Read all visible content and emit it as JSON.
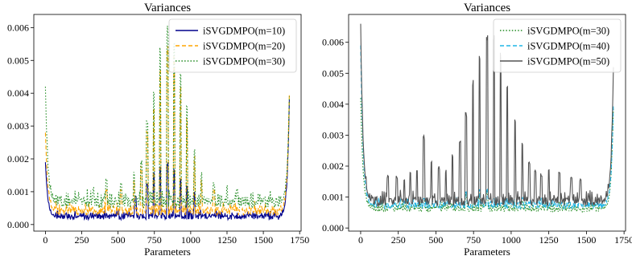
{
  "chart_data": [
    {
      "type": "line",
      "title": "Variances",
      "xlabel": "Parameters",
      "ylabel": "",
      "xlim": [
        -80,
        1760
      ],
      "ylim": [
        -0.0002,
        0.0064
      ],
      "x_ticks": [
        "0",
        "250",
        "500",
        "750",
        "1000",
        "1250",
        "1500",
        "1750"
      ],
      "y_ticks": [
        "0.000",
        "0.001",
        "0.002",
        "0.003",
        "0.004",
        "0.005",
        "0.006"
      ],
      "legend_position": "top-right",
      "n_params": 1680,
      "series": [
        {
          "name": "iSVGDMPO(m=10)",
          "color": "#00008b",
          "style": "solid",
          "base": 0.0002,
          "left_edge": 0.0019,
          "right_edge": 0.0038,
          "noise": 0.00017,
          "peaks": [
            [
              620,
              0.0009
            ],
            [
              700,
              0.0013
            ],
            [
              745,
              0.0016
            ],
            [
              790,
              0.0018
            ],
            [
              840,
              0.0019
            ],
            [
              885,
              0.0017
            ],
            [
              930,
              0.0014
            ],
            [
              975,
              0.0012
            ],
            [
              1025,
              0.001
            ]
          ]
        },
        {
          "name": "iSVGDMPO(m=20)",
          "color": "#ffa500",
          "style": "dashed",
          "base": 0.00035,
          "left_edge": 0.0028,
          "right_edge": 0.004,
          "noise": 0.00025,
          "peaks": [
            [
              420,
              0.0011
            ],
            [
              520,
              0.0011
            ],
            [
              610,
              0.0014
            ],
            [
              660,
              0.0018
            ],
            [
              700,
              0.0029
            ],
            [
              745,
              0.0037
            ],
            [
              790,
              0.0048
            ],
            [
              840,
              0.0055
            ],
            [
              885,
              0.0052
            ],
            [
              930,
              0.0043
            ],
            [
              975,
              0.0033
            ],
            [
              1025,
              0.0021
            ],
            [
              1075,
              0.0014
            ],
            [
              1160,
              0.0011
            ]
          ]
        },
        {
          "name": "iSVGDMPO(m=30)",
          "color": "#228b22",
          "style": "dotted",
          "base": 0.0006,
          "left_edge": 0.0042,
          "right_edge": 0.0039,
          "noise": 0.00032,
          "peaks": [
            [
              330,
              0.0012
            ],
            [
              420,
              0.0014
            ],
            [
              520,
              0.0013
            ],
            [
              610,
              0.0016
            ],
            [
              660,
              0.002
            ],
            [
              700,
              0.0032
            ],
            [
              745,
              0.0043
            ],
            [
              790,
              0.0055
            ],
            [
              840,
              0.0061
            ],
            [
              885,
              0.0058
            ],
            [
              930,
              0.0048
            ],
            [
              975,
              0.0036
            ],
            [
              1025,
              0.0023
            ],
            [
              1075,
              0.0016
            ],
            [
              1160,
              0.0013
            ],
            [
              1250,
              0.0012
            ],
            [
              1320,
              0.0011
            ]
          ]
        }
      ]
    },
    {
      "type": "line",
      "title": "Variances",
      "xlabel": "Parameters",
      "ylabel": "",
      "xlim": [
        -80,
        1760
      ],
      "ylim": [
        -0.0001,
        0.0069
      ],
      "x_ticks": [
        "0",
        "250",
        "500",
        "750",
        "1000",
        "1250",
        "1500",
        "1750"
      ],
      "y_ticks": [
        "0.000",
        "0.001",
        "0.002",
        "0.003",
        "0.004",
        "0.005",
        "0.006"
      ],
      "legend_position": "top-right",
      "n_params": 1680,
      "series": [
        {
          "name": "iSVGDMPO(m=30)",
          "color": "#228b22",
          "style": "dotted",
          "base": 0.00058,
          "left_edge": 0.0042,
          "right_edge": 0.0039,
          "noise": 0.00022,
          "peaks": [
            [
              420,
              0.0009
            ],
            [
              700,
              0.0011
            ],
            [
              790,
              0.0012
            ],
            [
              840,
              0.0012
            ],
            [
              1075,
              0.0009
            ]
          ]
        },
        {
          "name": "iSVGDMPO(m=40)",
          "color": "#1fb5e6",
          "style": "dashed",
          "base": 0.00068,
          "left_edge": 0.0059,
          "right_edge": 0.004,
          "noise": 0.00022,
          "peaks": [
            [
              420,
              0.001
            ],
            [
              700,
              0.0012
            ],
            [
              790,
              0.0013
            ],
            [
              840,
              0.0013
            ],
            [
              1075,
              0.001
            ]
          ]
        },
        {
          "name": "iSVGDMPO(m=50)",
          "color": "#545454",
          "style": "solid",
          "base": 0.0008,
          "left_edge": 0.0066,
          "right_edge": 0.0052,
          "noise": 0.0003,
          "peaks": [
            [
              180,
              0.0017
            ],
            [
              240,
              0.0017
            ],
            [
              290,
              0.0016
            ],
            [
              330,
              0.0019
            ],
            [
              375,
              0.0019
            ],
            [
              420,
              0.003
            ],
            [
              470,
              0.0022
            ],
            [
              520,
              0.002
            ],
            [
              565,
              0.0019
            ],
            [
              610,
              0.0024
            ],
            [
              660,
              0.0029
            ],
            [
              700,
              0.0038
            ],
            [
              745,
              0.0048
            ],
            [
              790,
              0.0057
            ],
            [
              840,
              0.0065
            ],
            [
              885,
              0.0064
            ],
            [
              930,
              0.0057
            ],
            [
              975,
              0.0046
            ],
            [
              1025,
              0.0036
            ],
            [
              1075,
              0.0028
            ],
            [
              1120,
              0.0022
            ],
            [
              1160,
              0.0019
            ],
            [
              1200,
              0.0018
            ],
            [
              1250,
              0.0019
            ],
            [
              1320,
              0.0018
            ],
            [
              1400,
              0.0017
            ],
            [
              1460,
              0.0016
            ]
          ]
        }
      ]
    }
  ]
}
